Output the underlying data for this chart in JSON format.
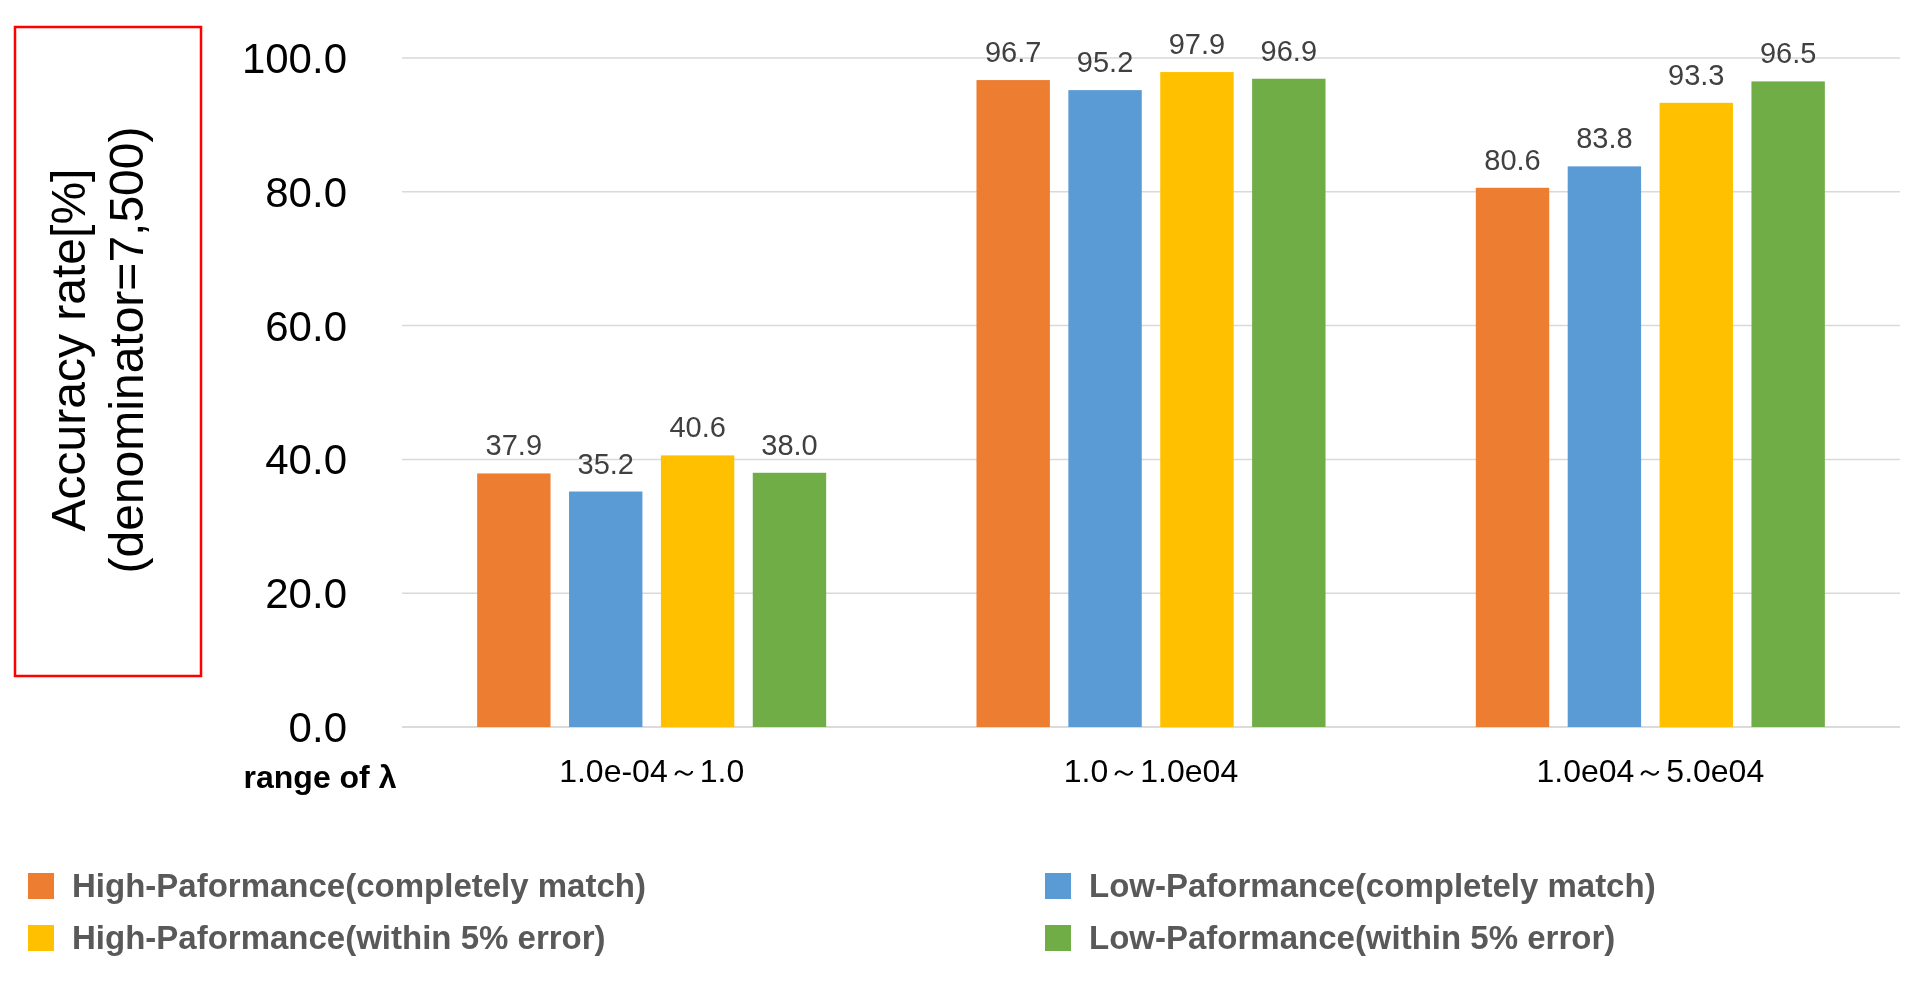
{
  "chart_data": {
    "type": "bar",
    "ylabel": "Accuracy rate[%]\n(denominator=7,500)",
    "xlabel": "range of λ",
    "categories": [
      "1.0e-04～1.0",
      "1.0～1.0e04",
      "1.0e04～5.0e04"
    ],
    "series": [
      {
        "name": "High-Paformance(completely match)",
        "color": "#ed7d31",
        "values": [
          37.9,
          96.7,
          80.6
        ],
        "value_labels": [
          "37.9",
          "96.7",
          "80.6"
        ]
      },
      {
        "name": "Low-Paformance(completely match)",
        "color": "#5b9bd5",
        "values": [
          35.2,
          95.2,
          83.8
        ],
        "value_labels": [
          "35.2",
          "95.2",
          "83.8"
        ]
      },
      {
        "name": "High-Paformance(within 5% error)",
        "color": "#ffc000",
        "values": [
          40.6,
          97.9,
          93.3
        ],
        "value_labels": [
          "40.6",
          "97.9",
          "93.3"
        ]
      },
      {
        "name": "Low-Paformance(within 5% error)",
        "color": "#70ad47",
        "values": [
          38.0,
          96.9,
          96.5
        ],
        "value_labels": [
          "38.0",
          "96.9",
          "96.5"
        ]
      }
    ],
    "ylim": [
      0,
      100
    ],
    "yticks": [
      {
        "value": 0,
        "label": "0.0"
      },
      {
        "value": 20,
        "label": "20.0"
      },
      {
        "value": 40,
        "label": "40.0"
      },
      {
        "value": 60,
        "label": "60.0"
      },
      {
        "value": 80,
        "label": "80.0"
      },
      {
        "value": 100,
        "label": "100.0"
      }
    ],
    "grid": "y",
    "legend": "bottom"
  }
}
